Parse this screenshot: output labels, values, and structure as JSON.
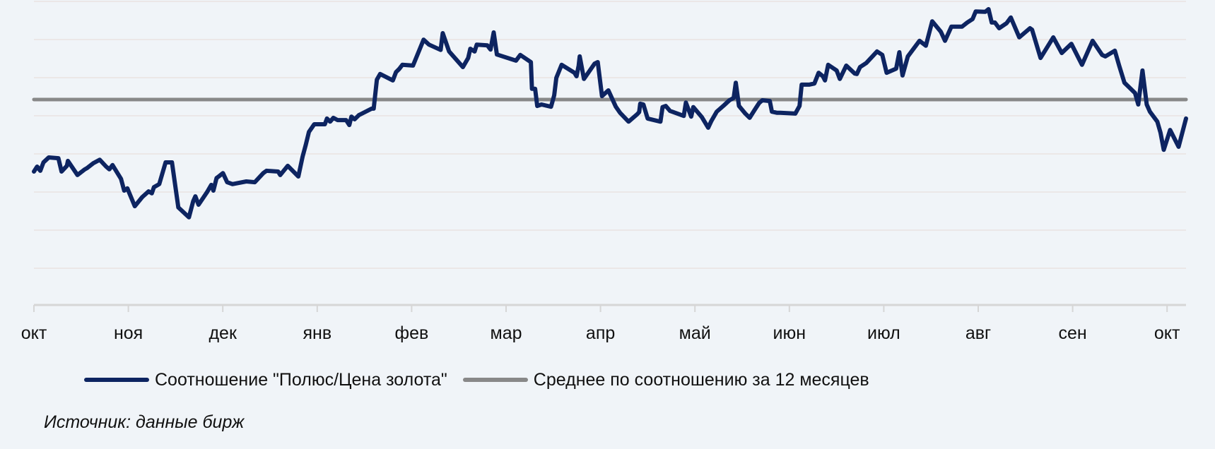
{
  "chart_data": {
    "type": "line",
    "title": "",
    "xlabel": "",
    "ylabel": "",
    "y_axis_labels_shown": false,
    "grid": true,
    "legend_position": "bottom",
    "ylim": [
      0,
      8
    ],
    "gridlines_count": 8,
    "x_ticks": [
      "окт",
      "ноя",
      "дек",
      "янв",
      "фев",
      "мар",
      "апр",
      "май",
      "июн",
      "июл",
      "авг",
      "сен",
      "окт"
    ],
    "series": [
      {
        "name": "Соотношение \"Полюс/Цена золота\"",
        "color": "#0d2461",
        "points_xfrac_y": [
          [
            0.0,
            3.5
          ],
          [
            0.003,
            3.63
          ],
          [
            0.006,
            3.52
          ],
          [
            0.009,
            3.74
          ],
          [
            0.014,
            3.87
          ],
          [
            0.023,
            3.85
          ],
          [
            0.026,
            3.5
          ],
          [
            0.031,
            3.65
          ],
          [
            0.032,
            3.78
          ],
          [
            0.041,
            3.41
          ],
          [
            0.048,
            3.56
          ],
          [
            0.05,
            3.59
          ],
          [
            0.056,
            3.72
          ],
          [
            0.062,
            3.81
          ],
          [
            0.068,
            3.63
          ],
          [
            0.071,
            3.56
          ],
          [
            0.074,
            3.67
          ],
          [
            0.082,
            3.31
          ],
          [
            0.085,
            3.0
          ],
          [
            0.088,
            3.06
          ],
          [
            0.095,
            2.59
          ],
          [
            0.102,
            2.83
          ],
          [
            0.108,
            2.98
          ],
          [
            0.111,
            2.93
          ],
          [
            0.113,
            3.09
          ],
          [
            0.118,
            3.17
          ],
          [
            0.124,
            3.74
          ],
          [
            0.13,
            3.74
          ],
          [
            0.136,
            2.56
          ],
          [
            0.146,
            2.3
          ],
          [
            0.15,
            2.72
          ],
          [
            0.152,
            2.85
          ],
          [
            0.155,
            2.63
          ],
          [
            0.163,
            2.96
          ],
          [
            0.167,
            3.15
          ],
          [
            0.169,
            3.0
          ],
          [
            0.172,
            3.33
          ],
          [
            0.174,
            3.37
          ],
          [
            0.178,
            3.46
          ],
          [
            0.182,
            3.22
          ],
          [
            0.187,
            3.17
          ],
          [
            0.2,
            3.24
          ],
          [
            0.208,
            3.22
          ],
          [
            0.216,
            3.46
          ],
          [
            0.219,
            3.52
          ],
          [
            0.23,
            3.5
          ],
          [
            0.232,
            3.41
          ],
          [
            0.239,
            3.65
          ],
          [
            0.249,
            3.37
          ],
          [
            0.253,
            3.89
          ],
          [
            0.256,
            4.2
          ],
          [
            0.259,
            4.54
          ],
          [
            0.264,
            4.74
          ],
          [
            0.274,
            4.74
          ],
          [
            0.276,
            4.89
          ],
          [
            0.279,
            4.81
          ],
          [
            0.282,
            4.91
          ],
          [
            0.286,
            4.85
          ],
          [
            0.294,
            4.85
          ],
          [
            0.297,
            4.72
          ],
          [
            0.299,
            4.94
          ],
          [
            0.302,
            4.87
          ],
          [
            0.306,
            4.98
          ],
          [
            0.318,
            5.15
          ],
          [
            0.32,
            5.15
          ],
          [
            0.323,
            5.91
          ],
          [
            0.326,
            6.06
          ],
          [
            0.338,
            5.89
          ],
          [
            0.341,
            6.11
          ],
          [
            0.344,
            6.19
          ],
          [
            0.347,
            6.3
          ],
          [
            0.357,
            6.28
          ],
          [
            0.367,
            6.96
          ],
          [
            0.372,
            6.83
          ],
          [
            0.383,
            6.69
          ],
          [
            0.385,
            7.13
          ],
          [
            0.391,
            6.65
          ],
          [
            0.404,
            6.24
          ],
          [
            0.409,
            6.48
          ],
          [
            0.411,
            6.72
          ],
          [
            0.415,
            6.65
          ],
          [
            0.417,
            6.83
          ],
          [
            0.427,
            6.81
          ],
          [
            0.43,
            6.7
          ],
          [
            0.433,
            7.15
          ],
          [
            0.436,
            6.57
          ],
          [
            0.454,
            6.41
          ],
          [
            0.458,
            6.56
          ],
          [
            0.468,
            6.37
          ],
          [
            0.469,
            5.67
          ],
          [
            0.472,
            5.67
          ],
          [
            0.474,
            5.22
          ],
          [
            0.478,
            5.26
          ],
          [
            0.487,
            5.2
          ],
          [
            0.49,
            5.5
          ],
          [
            0.492,
            5.96
          ],
          [
            0.497,
            6.3
          ],
          [
            0.509,
            6.09
          ],
          [
            0.511,
            6.0
          ],
          [
            0.513,
            6.28
          ],
          [
            0.514,
            6.52
          ],
          [
            0.518,
            5.93
          ],
          [
            0.528,
            6.33
          ],
          [
            0.531,
            6.37
          ],
          [
            0.535,
            5.48
          ],
          [
            0.541,
            5.63
          ],
          [
            0.548,
            5.2
          ],
          [
            0.552,
            5.04
          ],
          [
            0.56,
            4.81
          ],
          [
            0.568,
            5.0
          ],
          [
            0.57,
            5.06
          ],
          [
            0.571,
            5.28
          ],
          [
            0.574,
            5.26
          ],
          [
            0.578,
            4.89
          ],
          [
            0.59,
            4.81
          ],
          [
            0.592,
            5.19
          ],
          [
            0.595,
            5.22
          ],
          [
            0.599,
            5.09
          ],
          [
            0.612,
            4.96
          ],
          [
            0.614,
            5.31
          ],
          [
            0.619,
            4.94
          ],
          [
            0.621,
            5.19
          ],
          [
            0.629,
            4.93
          ],
          [
            0.635,
            4.65
          ],
          [
            0.638,
            4.83
          ],
          [
            0.643,
            5.07
          ],
          [
            0.65,
            5.24
          ],
          [
            0.655,
            5.37
          ],
          [
            0.659,
            5.43
          ],
          [
            0.661,
            5.83
          ],
          [
            0.664,
            5.22
          ],
          [
            0.67,
            5.02
          ],
          [
            0.674,
            4.91
          ],
          [
            0.679,
            5.13
          ],
          [
            0.683,
            5.3
          ],
          [
            0.686,
            5.37
          ],
          [
            0.693,
            5.35
          ],
          [
            0.695,
            5.07
          ],
          [
            0.7,
            5.04
          ],
          [
            0.703,
            5.04
          ],
          [
            0.717,
            5.02
          ],
          [
            0.721,
            5.22
          ],
          [
            0.723,
            5.78
          ],
          [
            0.73,
            5.78
          ],
          [
            0.735,
            5.81
          ],
          [
            0.739,
            6.09
          ],
          [
            0.743,
            6.0
          ],
          [
            0.745,
            5.89
          ],
          [
            0.748,
            6.3
          ],
          [
            0.756,
            6.15
          ],
          [
            0.759,
            5.93
          ],
          [
            0.765,
            6.28
          ],
          [
            0.773,
            6.07
          ],
          [
            0.775,
            6.06
          ],
          [
            0.778,
            6.24
          ],
          [
            0.784,
            6.35
          ],
          [
            0.794,
            6.65
          ],
          [
            0.799,
            6.56
          ],
          [
            0.803,
            6.09
          ],
          [
            0.812,
            6.2
          ],
          [
            0.815,
            6.63
          ],
          [
            0.818,
            6.02
          ],
          [
            0.823,
            6.52
          ],
          [
            0.834,
            6.93
          ],
          [
            0.84,
            6.8
          ],
          [
            0.846,
            7.44
          ],
          [
            0.854,
            7.17
          ],
          [
            0.858,
            6.93
          ],
          [
            0.864,
            7.3
          ],
          [
            0.874,
            7.3
          ],
          [
            0.879,
            7.41
          ],
          [
            0.884,
            7.5
          ],
          [
            0.887,
            7.7
          ],
          [
            0.896,
            7.69
          ],
          [
            0.899,
            7.76
          ],
          [
            0.902,
            7.41
          ],
          [
            0.905,
            7.41
          ],
          [
            0.909,
            7.26
          ],
          [
            0.916,
            7.39
          ],
          [
            0.92,
            7.54
          ],
          [
            0.928,
            7.02
          ],
          [
            0.938,
            7.26
          ],
          [
            0.94,
            7.22
          ],
          [
            0.948,
            6.48
          ],
          [
            0.96,
            7.02
          ],
          [
            0.968,
            6.61
          ],
          [
            0.977,
            6.85
          ],
          [
            0.987,
            6.3
          ],
          [
            0.997,
            6.93
          ],
          [
            1.006,
            6.56
          ],
          [
            1.009,
            6.52
          ],
          [
            1.018,
            6.67
          ],
          [
            1.022,
            6.28
          ],
          [
            1.027,
            5.83
          ],
          [
            1.037,
            5.56
          ],
          [
            1.04,
            5.26
          ],
          [
            1.044,
            6.15
          ],
          [
            1.048,
            5.26
          ],
          [
            1.051,
            5.07
          ],
          [
            1.058,
            4.81
          ],
          [
            1.061,
            4.52
          ],
          [
            1.064,
            4.07
          ],
          [
            1.07,
            4.59
          ],
          [
            1.078,
            4.15
          ],
          [
            1.085,
            4.89
          ]
        ]
      },
      {
        "name": "Среднее по соотношению за 12 месяцев",
        "color": "#888888",
        "constant_y": 5.39
      }
    ]
  },
  "axis": {
    "x_ticks": [
      "окт",
      "ноя",
      "дек",
      "янв",
      "фев",
      "мар",
      "апр",
      "май",
      "июн",
      "июл",
      "авг",
      "сен",
      "окт"
    ]
  },
  "legend": {
    "items": [
      {
        "label": "Соотношение \"Полюс/Цена золота\"",
        "color": "#0d2461"
      },
      {
        "label": "Среднее по соотношению за 12 месяцев",
        "color": "#888888"
      }
    ]
  },
  "footer": {
    "source": "Источник: данные бирж"
  },
  "colors": {
    "background": "#f0f4f8",
    "gridline": "#ebe7e7",
    "axis": "#d6d6d6"
  }
}
